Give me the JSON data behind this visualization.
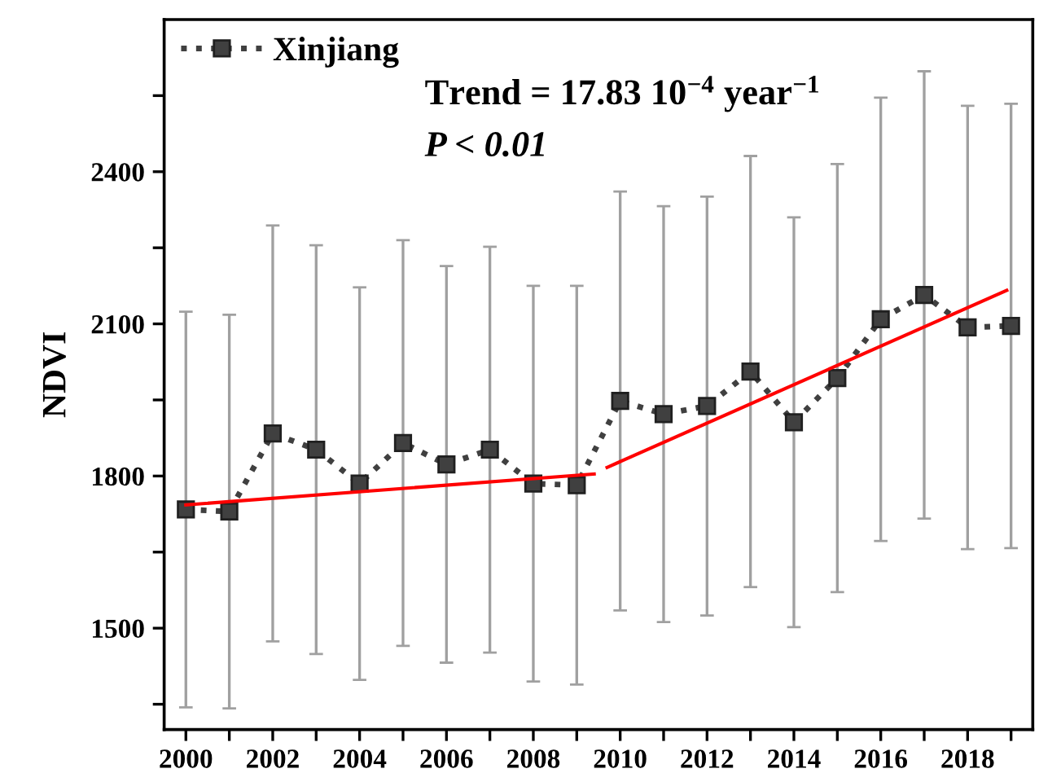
{
  "chart_data": {
    "type": "line",
    "ylabel": "NDVI",
    "x": [
      2000,
      2001,
      2002,
      2003,
      2004,
      2005,
      2006,
      2007,
      2008,
      2009,
      2010,
      2011,
      2012,
      2013,
      2014,
      2015,
      2016,
      2017,
      2018,
      2019
    ],
    "series": [
      {
        "name": "Xinjiang",
        "color": "#404040",
        "marker": "square",
        "line_style": "dotted",
        "values": [
          1734,
          1730,
          1884,
          1852,
          1785,
          1865,
          1823,
          1852,
          1785,
          1782,
          1948,
          1922,
          1938,
          2006,
          1906,
          1993,
          2109,
          2157,
          2093,
          2096
        ],
        "errors": [
          390,
          388,
          410,
          403,
          387,
          400,
          391,
          400,
          390,
          393,
          413,
          410,
          413,
          425,
          404,
          422,
          437,
          441,
          437,
          438
        ]
      },
      {
        "type": "line",
        "color": "#ff0000",
        "line_style": "solid",
        "marker": "none",
        "x": [
          2000,
          2009.4
        ],
        "values": [
          1743,
          1804
        ]
      },
      {
        "type": "line",
        "color": "#ff0000",
        "line_style": "solid",
        "marker": "none",
        "x": [
          2009.7,
          2018.9
        ],
        "values": [
          1817,
          2166
        ]
      }
    ],
    "xlim": [
      1999.5,
      2019.5
    ],
    "xticks": [
      2000,
      {
        "value": 2001,
        "label": null
      },
      2002,
      {
        "value": 2003,
        "label": null
      },
      2004,
      {
        "value": 2005,
        "label": null
      },
      2006,
      {
        "value": 2007,
        "label": null
      },
      2008,
      {
        "value": 2009,
        "label": null
      },
      2010,
      {
        "value": 2011,
        "label": null
      },
      2012,
      {
        "value": 2013,
        "label": null
      },
      2014,
      {
        "value": 2015,
        "label": null
      },
      2016,
      {
        "value": 2017,
        "label": null
      },
      2018,
      {
        "value": 2019,
        "label": null
      }
    ],
    "ylim": [
      1300,
      2700
    ],
    "yticks": [
      {
        "value": 1350,
        "label": null
      },
      1500,
      {
        "value": 1650,
        "label": null
      },
      1800,
      {
        "value": 1950,
        "label": null
      },
      2100,
      {
        "value": 2250,
        "label": null
      },
      2400,
      {
        "value": 2550,
        "label": null
      }
    ],
    "annotations": [
      "Trend = 17.83 10$^{−4}$ year$^{−1}$",
      "P < 0.01"
    ],
    "legend": "top left",
    "grid": false
  }
}
